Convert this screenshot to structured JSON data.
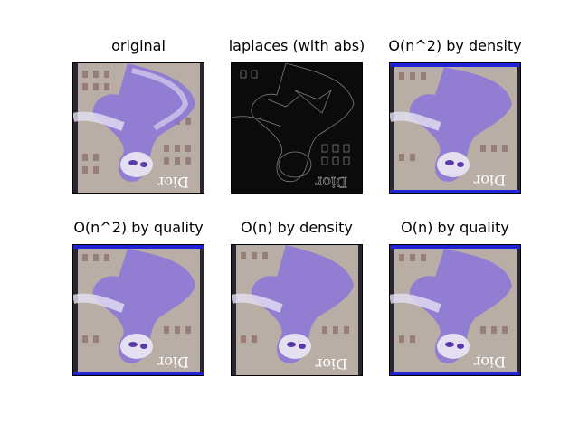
{
  "figure": {
    "background": "#ffffff",
    "panels": [
      {
        "title": "original",
        "kind": "photo"
      },
      {
        "title": "laplaces (with abs)",
        "kind": "edges"
      },
      {
        "title": "O(n^2) by density",
        "kind": "photo"
      },
      {
        "title": "O(n^2) by quality",
        "kind": "photo"
      },
      {
        "title": "O(n) by density",
        "kind": "photo"
      },
      {
        "title": "O(n) by quality",
        "kind": "photo"
      }
    ],
    "watermark_text": "Dior",
    "colors": {
      "photo_purple": "#8a74d8",
      "photo_light": "#e4e0f2",
      "photo_building": "#b8aa9e",
      "edge_bg": "#0b0b0b",
      "edge_line": "#9a9a9a",
      "blue_strip": "#1e24d6"
    }
  }
}
